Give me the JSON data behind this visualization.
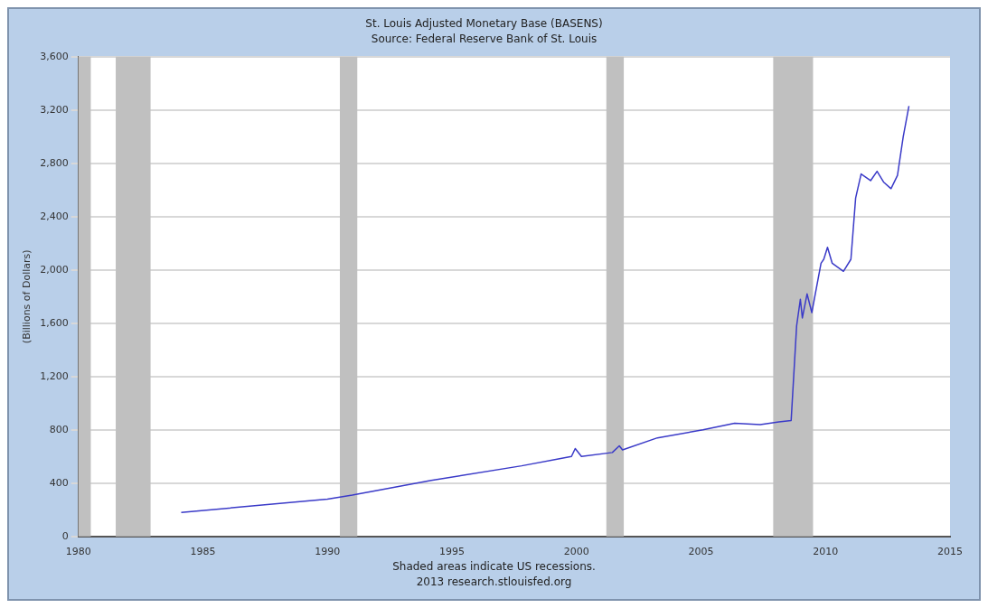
{
  "chart_data": {
    "type": "line",
    "title": "St. Louis Adjusted Monetary Base (BASENS)",
    "subtitle": "Source: Federal Reserve Bank of St. Louis",
    "ylabel": "(Billions of Dollars)",
    "annotations": [
      "Shaded areas indicate US recessions.",
      "2013 research.stlouisfed.org"
    ],
    "series": [
      {
        "color": "#3a3ac8",
        "x": [
          1984.13,
          1990.0,
          1991.0,
          1994.17,
          1997.8,
          1999.8,
          1999.95,
          2000.2,
          2001.44,
          2001.72,
          2001.85,
          2003.25,
          2005.08,
          2006.35,
          2007.38,
          2008.13,
          2008.62,
          2008.84,
          2008.99,
          2009.07,
          2009.26,
          2009.45,
          2009.82,
          2009.93,
          2010.08,
          2010.27,
          2010.72,
          2011.02,
          2011.21,
          2011.43,
          2011.81,
          2012.07,
          2012.33,
          2012.63,
          2012.89,
          2013.12,
          2013.35
        ],
        "values": [
          180,
          280,
          310,
          420,
          530,
          600,
          660,
          600,
          630,
          680,
          650,
          740,
          800,
          850,
          840,
          860,
          870,
          1580,
          1780,
          1640,
          1820,
          1680,
          2050,
          2080,
          2170,
          2050,
          1990,
          2080,
          2540,
          2720,
          2670,
          2740,
          2660,
          2610,
          2710,
          3000,
          3230
        ]
      }
    ],
    "xlim": [
      1980,
      2015
    ],
    "xticks": [
      1980,
      1985,
      1990,
      1995,
      2000,
      2005,
      2010,
      2015
    ],
    "ylim": [
      0,
      3600
    ],
    "yticks": [
      0,
      400,
      800,
      {
        "value": 1200,
        "label": "1,200"
      },
      {
        "value": 1600,
        "label": "1,600"
      },
      {
        "value": 2000,
        "label": "2,000"
      },
      {
        "value": 2400,
        "label": "2,400"
      },
      {
        "value": 2800,
        "label": "2,800"
      },
      {
        "value": 3200,
        "label": "3,200"
      },
      {
        "value": 3600,
        "label": "3,600"
      }
    ],
    "bands": [
      {
        "axis": "x",
        "from": 1980.0,
        "to": 1980.5,
        "color": "#c0c0c0"
      },
      {
        "axis": "x",
        "from": 1981.5,
        "to": 1982.9,
        "color": "#c0c0c0"
      },
      {
        "axis": "x",
        "from": 1990.5,
        "to": 1991.2,
        "color": "#c0c0c0"
      },
      {
        "axis": "x",
        "from": 2001.2,
        "to": 2001.9,
        "color": "#c0c0c0"
      },
      {
        "axis": "x",
        "from": 2007.9,
        "to": 2009.5,
        "color": "#c0c0c0"
      }
    ],
    "grid": "y",
    "legend": false,
    "marker": "none",
    "line_style": "solid"
  }
}
